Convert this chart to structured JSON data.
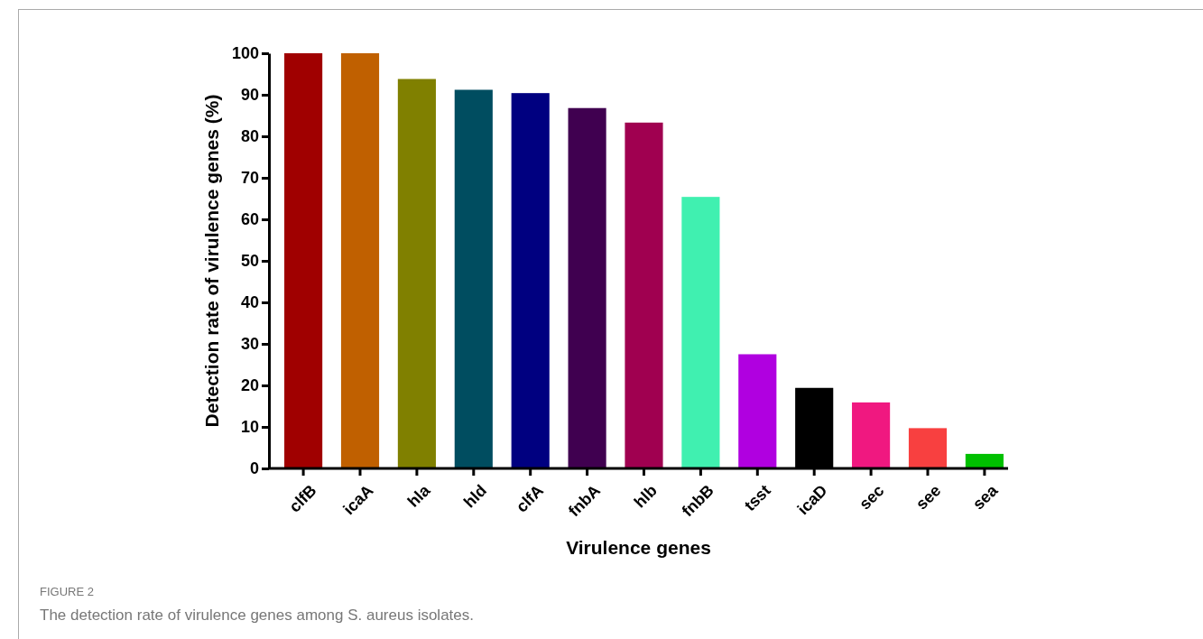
{
  "chart_data": {
    "type": "bar",
    "categories": [
      "clfB",
      "icaA",
      "hla",
      "hld",
      "clfA",
      "fnbA",
      "hlb",
      "fnbB",
      "tsst",
      "icaD",
      "sec",
      "see",
      "sea"
    ],
    "values": [
      100,
      100,
      93.8,
      91.2,
      90.4,
      86.8,
      83.3,
      65.4,
      27.5,
      19.4,
      15.9,
      9.7,
      3.5
    ],
    "colors": [
      "#a00000",
      "#c06000",
      "#808000",
      "#004d60",
      "#000080",
      "#400050",
      "#a00050",
      "#40f0b0",
      "#b000e0",
      "#000000",
      "#f01880",
      "#f84040",
      "#00c000"
    ],
    "xlabel": "Virulence genes",
    "ylabel": "Detection rate of virulence genes (%)",
    "ylim": [
      0,
      100
    ],
    "yticks": [
      0,
      10,
      20,
      30,
      40,
      50,
      60,
      70,
      80,
      90,
      100
    ],
    "grid": false,
    "annotations": [
      "FIGURE 2",
      "The detection rate of virulence genes among S. aureus isolates."
    ]
  }
}
